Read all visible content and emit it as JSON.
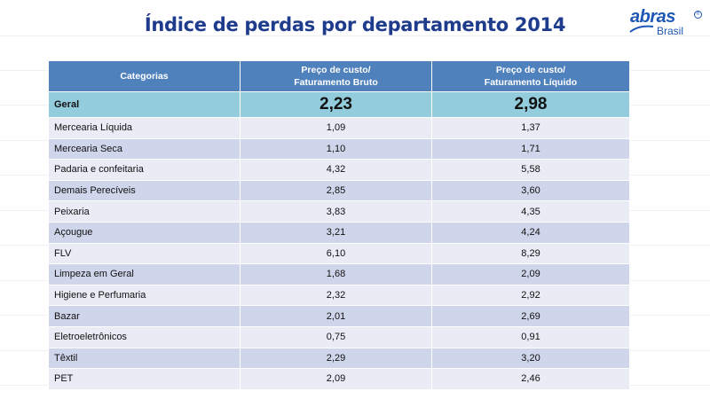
{
  "title": "Índice de perdas por departamento 2014",
  "logo": {
    "word": "abras",
    "registered": "®",
    "subtitle": "Brasil",
    "icon": "abras-logo-icon"
  },
  "table": {
    "headers": {
      "col1": "Categorias",
      "col2_line1": "Preço de custo/",
      "col2_line2": "Faturamento Bruto",
      "col3_line1": "Preço de custo/",
      "col3_line2": "Faturamento Líquido"
    },
    "rows": [
      {
        "categoria": "Geral",
        "bruto": "2,23",
        "liquido": "2,98"
      },
      {
        "categoria": "Mercearia Líquida",
        "bruto": "1,09",
        "liquido": "1,37"
      },
      {
        "categoria": "Mercearia Seca",
        "bruto": "1,10",
        "liquido": "1,71"
      },
      {
        "categoria": "Padaria e confeitaria",
        "bruto": "4,32",
        "liquido": "5,58"
      },
      {
        "categoria": "Demais Perecíveis",
        "bruto": "2,85",
        "liquido": "3,60"
      },
      {
        "categoria": "Peixaria",
        "bruto": "3,83",
        "liquido": "4,35"
      },
      {
        "categoria": "Açougue",
        "bruto": "3,21",
        "liquido": "4,24"
      },
      {
        "categoria": "FLV",
        "bruto": "6,10",
        "liquido": "8,29"
      },
      {
        "categoria": "Limpeza em Geral",
        "bruto": "1,68",
        "liquido": "2,09"
      },
      {
        "categoria": "Higiene e Perfumaria",
        "bruto": "2,32",
        "liquido": "2,92"
      },
      {
        "categoria": "Bazar",
        "bruto": "2,01",
        "liquido": "2,69"
      },
      {
        "categoria": "Eletroeletrônicos",
        "bruto": "0,75",
        "liquido": "0,91"
      },
      {
        "categoria": "Têxtil",
        "bruto": "2,29",
        "liquido": "3,20"
      },
      {
        "categoria": "PET",
        "bruto": "2,09",
        "liquido": "2,46"
      }
    ]
  },
  "colors": {
    "title": "#1f3b8c",
    "header": "#4f81bd",
    "highlight_row": "#93cddd",
    "row_light": "#e9ebf5",
    "row_dark": "#cfd5ea",
    "logo": "#1e57b5"
  }
}
